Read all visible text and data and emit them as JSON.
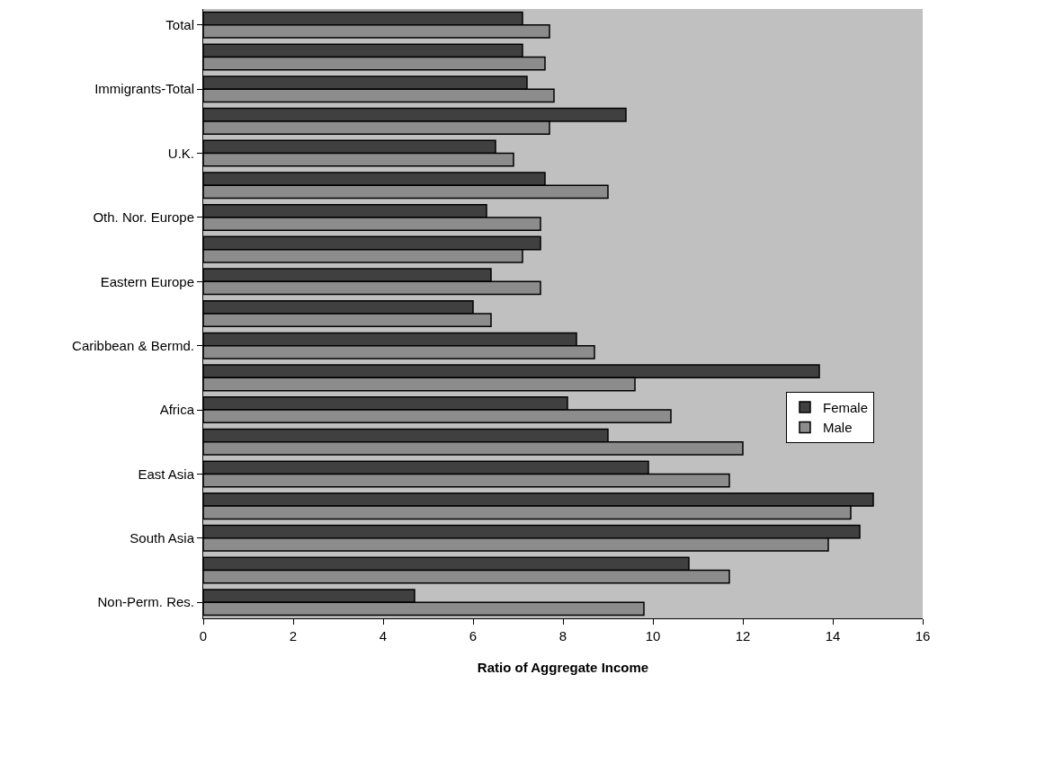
{
  "chart_data": {
    "type": "bar",
    "orientation": "horizontal",
    "xlabel": "Ratio of Aggregate Income",
    "categories": [
      "Total",
      null,
      "Immigrants-Total",
      null,
      "U.K.",
      null,
      "Oth. Nor. Europe",
      null,
      "Eastern Europe",
      null,
      "Caribbean & Bermd.",
      null,
      "Africa",
      null,
      "East Asia",
      null,
      "South Asia",
      null,
      "Non-Perm. Res."
    ],
    "series": [
      {
        "name": "Female",
        "color": "#404040",
        "values": [
          7.1,
          7.1,
          7.2,
          9.4,
          6.5,
          7.6,
          6.3,
          7.5,
          6.4,
          6.0,
          8.3,
          13.7,
          8.1,
          9.0,
          9.9,
          14.9,
          14.6,
          10.8,
          4.7
        ]
      },
      {
        "name": "Male",
        "color": "#8c8c8c",
        "values": [
          7.7,
          7.6,
          7.8,
          7.7,
          6.9,
          9.0,
          7.5,
          7.1,
          7.5,
          6.4,
          8.7,
          9.6,
          10.4,
          12.0,
          11.7,
          14.4,
          13.9,
          11.7,
          9.8
        ]
      }
    ],
    "xlim": [
      0,
      16
    ],
    "xticks": [
      0,
      2,
      4,
      6,
      8,
      10,
      12,
      14,
      16
    ],
    "grid": false,
    "legend": "right"
  }
}
